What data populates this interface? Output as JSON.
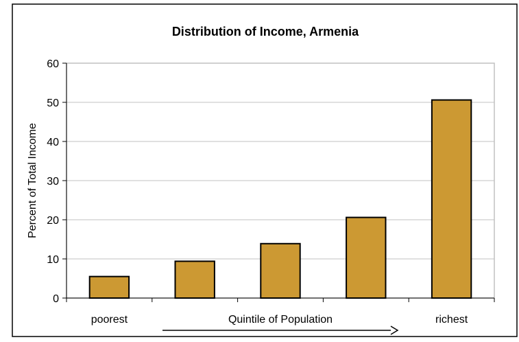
{
  "chart_data": {
    "type": "bar",
    "title": "Distribution of Income, Armenia",
    "ylabel": "Percent of Total Income",
    "xlabel": "Quintile of Population",
    "categories": [
      "poorest",
      "",
      "",
      "",
      "richest"
    ],
    "values": [
      5.5,
      9.4,
      13.9,
      20.6,
      50.6
    ],
    "ylim": [
      0,
      60
    ],
    "yticks": [
      0,
      10,
      20,
      30,
      40,
      50,
      60
    ],
    "grid": true,
    "legend": "none",
    "bar_color": "#CC9933",
    "bar_stroke": "#000000"
  }
}
